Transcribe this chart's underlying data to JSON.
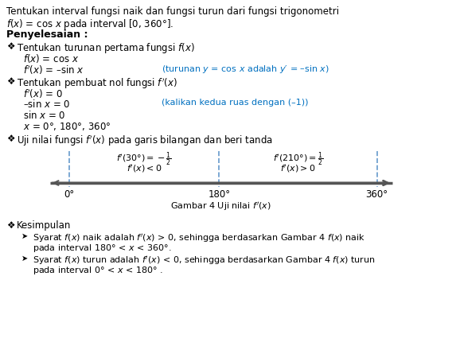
{
  "bg_color": "#ffffff",
  "text_color": "#000000",
  "blue_color": "#0070C0",
  "title_line1": "Tentukan interval fungsi naik dan fungsi turun dari fungsi trigonometri",
  "title_line2": "f(x) = cos x pada interval [0, 360°].",
  "penyelesaian": "Penyelesaian :",
  "step1_header": "Tentukan turunan pertama fungsi f(x)",
  "step1_fx": "f(x) = cos x",
  "step1_deriv": "f′(x) = –sin x",
  "step1_note": "(turunan y = cos x adalah y′ = –sin x)",
  "step2_header": "Tentukan pembuat nol fungsi f′(x)",
  "step2_eq1": "f′(x) = 0",
  "step2_eq2": "–sin x = 0",
  "step2_note": "(kalikan kedua ruas dengan (–1))",
  "step2_eq3": "sin x = 0",
  "step2_eq4": "x = 0°, 180°, 360°",
  "step3_header": "Uji nilai fungsi f′(x) pada garis bilangan dan beri tanda",
  "label_0": "0°",
  "label_180": "180°",
  "label_360": "360°",
  "fig_label": "Gambar 4 Uji nilai f′(x)",
  "box1_line1": "f′(30°) = –1/2",
  "box1_line2": "f′(x) < 0",
  "box2_line1": "f′(210°) = 1/2",
  "box2_line2": "f′(x) > 0",
  "conclusion_header": "Kesimpulan",
  "concl1_line1": "Syarat f(x) naik adalah f′(x) > 0, sehingga berdasarkan Gambar 4 f(x) naik",
  "concl1_line2": "pada interval 180° < x < 360°.",
  "concl2_line1": "Syarat f(x) turun adalah f′(x) < 0, sehingga berdasarkan Gambar 4 f(x) turun",
  "concl2_line2": "pada interval 0° < x < 180° ."
}
